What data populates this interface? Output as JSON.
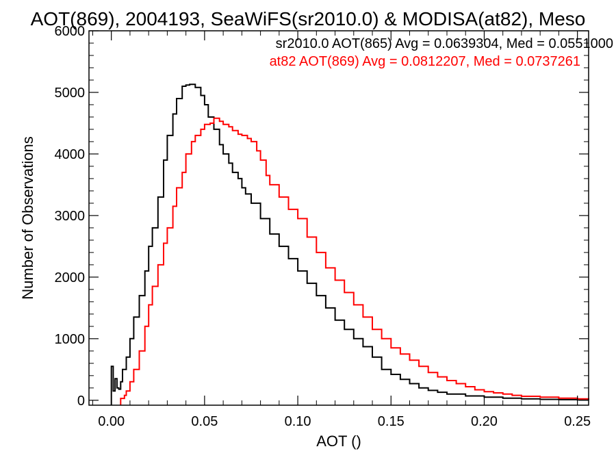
{
  "chart_data": {
    "type": "line",
    "title": "AOT(869), 2004193, SeaWiFS(sr2010.0) & MODISA(at82), Meso",
    "xlabel": "AOT ()",
    "ylabel": "Number of Observations",
    "xlim": [
      -0.012,
      0.256
    ],
    "ylim": [
      -80,
      6000
    ],
    "x_ticks": [
      0.0,
      0.05,
      0.1,
      0.15,
      0.2,
      0.25
    ],
    "x_tick_labels": [
      "0.00",
      "0.05",
      "0.10",
      "0.15",
      "0.20",
      "0.25"
    ],
    "y_ticks": [
      0,
      1000,
      2000,
      3000,
      4000,
      5000,
      6000
    ],
    "y_tick_labels": [
      "0",
      "1000",
      "2000",
      "3000",
      "4000",
      "5000",
      "6000"
    ],
    "grid": false,
    "step": true,
    "series": [
      {
        "name": "sr2010.0 AOT(865) Avg = 0.0639304, Med = 0.0551000",
        "color": "#000000",
        "points": [
          [
            0.0,
            -80
          ],
          [
            0.0,
            550
          ],
          [
            0.001,
            150
          ],
          [
            0.002,
            350
          ],
          [
            0.003,
            200
          ],
          [
            0.004,
            180
          ],
          [
            0.005,
            300
          ],
          [
            0.006,
            500
          ],
          [
            0.008,
            700
          ],
          [
            0.01,
            1000
          ],
          [
            0.012,
            1350
          ],
          [
            0.015,
            1700
          ],
          [
            0.018,
            2100
          ],
          [
            0.02,
            2500
          ],
          [
            0.022,
            2800
          ],
          [
            0.025,
            3300
          ],
          [
            0.028,
            3900
          ],
          [
            0.03,
            4300
          ],
          [
            0.033,
            4650
          ],
          [
            0.035,
            4900
          ],
          [
            0.038,
            5100
          ],
          [
            0.04,
            5120
          ],
          [
            0.042,
            5130
          ],
          [
            0.045,
            5080
          ],
          [
            0.048,
            4950
          ],
          [
            0.05,
            4800
          ],
          [
            0.052,
            4600
          ],
          [
            0.055,
            4400
          ],
          [
            0.058,
            4150
          ],
          [
            0.06,
            4000
          ],
          [
            0.063,
            3850
          ],
          [
            0.065,
            3700
          ],
          [
            0.068,
            3600
          ],
          [
            0.07,
            3450
          ],
          [
            0.072,
            3350
          ],
          [
            0.075,
            3200
          ],
          [
            0.08,
            2950
          ],
          [
            0.085,
            2700
          ],
          [
            0.09,
            2500
          ],
          [
            0.095,
            2300
          ],
          [
            0.1,
            2100
          ],
          [
            0.105,
            1900
          ],
          [
            0.11,
            1700
          ],
          [
            0.115,
            1500
          ],
          [
            0.12,
            1300
          ],
          [
            0.125,
            1150
          ],
          [
            0.13,
            1000
          ],
          [
            0.135,
            870
          ],
          [
            0.14,
            700
          ],
          [
            0.145,
            500
          ],
          [
            0.15,
            420
          ],
          [
            0.155,
            340
          ],
          [
            0.16,
            270
          ],
          [
            0.165,
            200
          ],
          [
            0.17,
            160
          ],
          [
            0.175,
            130
          ],
          [
            0.18,
            100
          ],
          [
            0.19,
            70
          ],
          [
            0.2,
            50
          ],
          [
            0.21,
            35
          ],
          [
            0.22,
            22
          ],
          [
            0.23,
            15
          ],
          [
            0.24,
            10
          ],
          [
            0.25,
            6
          ],
          [
            0.256,
            4
          ]
        ]
      },
      {
        "name": "at82 AOT(869) Avg = 0.0812207, Med = 0.0737261",
        "color": "#ff0000",
        "points": [
          [
            0.005,
            -80
          ],
          [
            0.005,
            30
          ],
          [
            0.007,
            80
          ],
          [
            0.008,
            150
          ],
          [
            0.01,
            300
          ],
          [
            0.012,
            500
          ],
          [
            0.015,
            800
          ],
          [
            0.018,
            1200
          ],
          [
            0.02,
            1550
          ],
          [
            0.022,
            1850
          ],
          [
            0.025,
            2200
          ],
          [
            0.028,
            2550
          ],
          [
            0.03,
            2800
          ],
          [
            0.033,
            3150
          ],
          [
            0.035,
            3450
          ],
          [
            0.038,
            3700
          ],
          [
            0.04,
            4000
          ],
          [
            0.043,
            4200
          ],
          [
            0.045,
            4300
          ],
          [
            0.048,
            4400
          ],
          [
            0.05,
            4480
          ],
          [
            0.053,
            4500
          ],
          [
            0.055,
            4580
          ],
          [
            0.058,
            4530
          ],
          [
            0.06,
            4480
          ],
          [
            0.063,
            4440
          ],
          [
            0.065,
            4380
          ],
          [
            0.068,
            4320
          ],
          [
            0.07,
            4300
          ],
          [
            0.073,
            4250
          ],
          [
            0.075,
            4200
          ],
          [
            0.078,
            4050
          ],
          [
            0.08,
            3900
          ],
          [
            0.083,
            3650
          ],
          [
            0.085,
            3500
          ],
          [
            0.09,
            3300
          ],
          [
            0.095,
            3100
          ],
          [
            0.1,
            2950
          ],
          [
            0.105,
            2650
          ],
          [
            0.11,
            2400
          ],
          [
            0.115,
            2150
          ],
          [
            0.12,
            1950
          ],
          [
            0.125,
            1750
          ],
          [
            0.13,
            1550
          ],
          [
            0.135,
            1350
          ],
          [
            0.14,
            1150
          ],
          [
            0.145,
            1000
          ],
          [
            0.15,
            850
          ],
          [
            0.155,
            750
          ],
          [
            0.16,
            650
          ],
          [
            0.165,
            550
          ],
          [
            0.17,
            450
          ],
          [
            0.175,
            380
          ],
          [
            0.18,
            320
          ],
          [
            0.185,
            270
          ],
          [
            0.19,
            220
          ],
          [
            0.195,
            170
          ],
          [
            0.2,
            140
          ],
          [
            0.205,
            120
          ],
          [
            0.21,
            100
          ],
          [
            0.215,
            80
          ],
          [
            0.22,
            65
          ],
          [
            0.23,
            50
          ],
          [
            0.24,
            35
          ],
          [
            0.25,
            22
          ],
          [
            0.256,
            15
          ]
        ]
      }
    ]
  }
}
